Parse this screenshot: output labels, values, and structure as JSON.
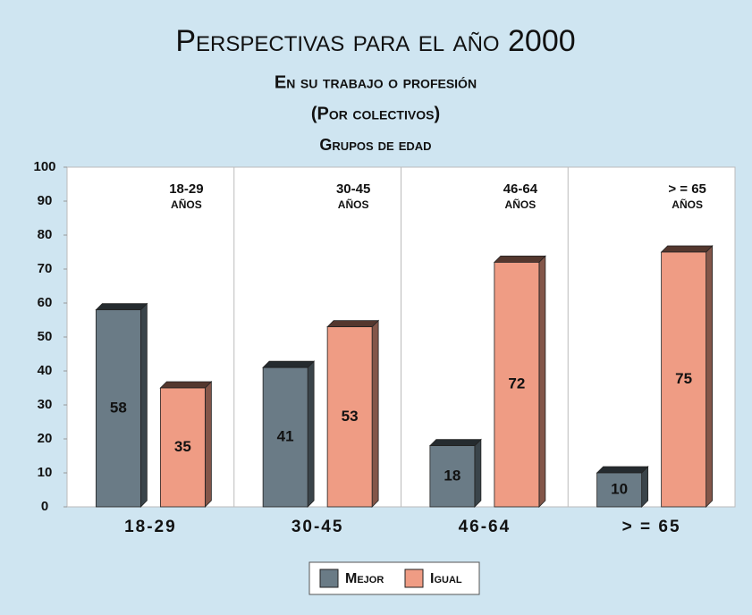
{
  "chart_data": {
    "type": "bar",
    "title": "Perspectivas para el año 2000",
    "subtitle": "En su trabajo o profesión",
    "subtitle2": "(Por colectivos)",
    "xlabel": "Grupos de edad",
    "categories": [
      "18-29",
      "30-45",
      "46-64",
      "> = 65"
    ],
    "annotations": [
      {
        "text": "18-29",
        "sub": "AÑOS"
      },
      {
        "text": "30-45",
        "sub": "AÑOS"
      },
      {
        "text": "46-64",
        "sub": "AÑOS"
      },
      {
        "text": "> = 65",
        "sub": "AÑOS"
      }
    ],
    "series": [
      {
        "name": "Mejor",
        "color": "#6a7b86",
        "values": [
          58,
          41,
          18,
          10
        ]
      },
      {
        "name": "Igual",
        "color": "#ef9c84",
        "values": [
          35,
          53,
          72,
          75
        ]
      }
    ],
    "ylim": [
      0,
      100
    ],
    "yticks": [
      0,
      10,
      20,
      30,
      40,
      50,
      60,
      70,
      80,
      90,
      100
    ],
    "legend": "bottom"
  }
}
